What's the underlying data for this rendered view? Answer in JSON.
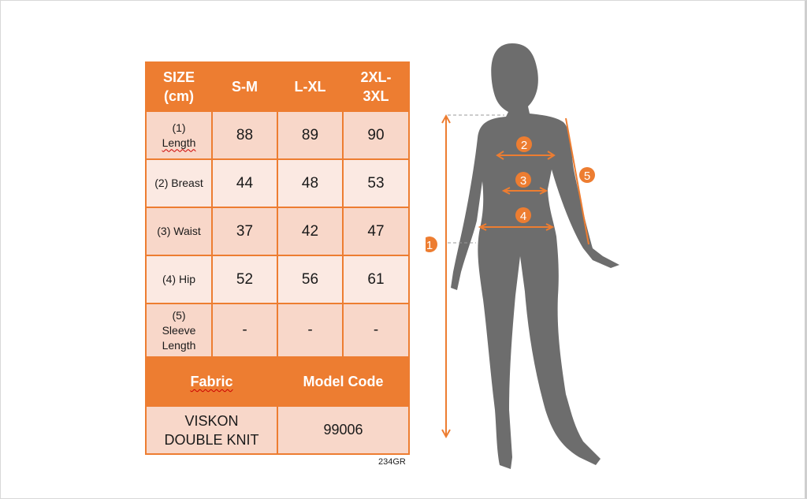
{
  "table": {
    "header": [
      "SIZE (cm)",
      "S-M",
      "L-XL",
      "2XL-3XL"
    ],
    "rows": [
      {
        "label": "(1) Length",
        "values": [
          "88",
          "89",
          "90"
        ]
      },
      {
        "label": "(2) Breast",
        "values": [
          "44",
          "48",
          "53"
        ]
      },
      {
        "label": "(3) Waist",
        "values": [
          "37",
          "42",
          "47"
        ]
      },
      {
        "label": "(4) Hip",
        "values": [
          "52",
          "56",
          "61"
        ]
      },
      {
        "label": "(5) Sleeve Length",
        "values": [
          "-",
          "-",
          "-"
        ]
      }
    ],
    "fabric_header": "Fabric",
    "model_code_header": "Model Code",
    "fabric_value": "VISKON DOUBLE KNIT",
    "model_code_value": "99006"
  },
  "footer_code": "234GR",
  "figure": {
    "markers": [
      "1",
      "2",
      "3",
      "4",
      "5"
    ]
  },
  "colors": {
    "accent": "#ed7d31",
    "row_dark": "#f8d7c9",
    "row_light": "#fbe9e2",
    "silhouette": "#6d6d6d"
  }
}
